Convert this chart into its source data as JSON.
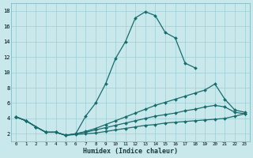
{
  "xlabel": "Humidex (Indice chaleur)",
  "background_color": "#c8e8ec",
  "grid_color": "#9ecdd4",
  "line_color": "#1a6b6b",
  "xlim": [
    -0.5,
    23.5
  ],
  "ylim": [
    1,
    19
  ],
  "xticks": [
    0,
    1,
    2,
    3,
    4,
    5,
    6,
    7,
    8,
    9,
    10,
    11,
    12,
    13,
    14,
    15,
    16,
    17,
    18,
    19,
    20,
    21,
    22,
    23
  ],
  "yticks": [
    2,
    4,
    6,
    8,
    10,
    12,
    14,
    16,
    18
  ],
  "series1_y": [
    4.2,
    3.7,
    2.9,
    2.2,
    2.2,
    1.8,
    2.0,
    4.3,
    6.0,
    8.5,
    11.8,
    14.0,
    17.1,
    17.9,
    17.4,
    15.2,
    14.5,
    11.2,
    10.6,
    null,
    null,
    null,
    null,
    null
  ],
  "series2_y": [
    4.2,
    3.7,
    2.9,
    2.2,
    2.2,
    1.8,
    2.0,
    2.3,
    2.7,
    3.2,
    3.7,
    4.2,
    4.7,
    5.2,
    5.7,
    6.1,
    6.5,
    6.9,
    7.3,
    7.7,
    8.5,
    6.5,
    5.1,
    4.8
  ],
  "series3_y": [
    4.2,
    3.7,
    2.9,
    2.2,
    2.2,
    1.8,
    2.0,
    2.2,
    2.5,
    2.8,
    3.1,
    3.4,
    3.7,
    4.0,
    4.3,
    4.5,
    4.7,
    5.0,
    5.2,
    5.5,
    5.7,
    5.5,
    4.8,
    4.6
  ],
  "series4_y": [
    4.2,
    3.7,
    2.9,
    2.2,
    2.2,
    1.8,
    1.9,
    2.0,
    2.1,
    2.3,
    2.5,
    2.7,
    2.9,
    3.1,
    3.2,
    3.4,
    3.5,
    3.6,
    3.7,
    3.8,
    3.9,
    4.0,
    4.3,
    4.6
  ],
  "figsize": [
    3.2,
    2.0
  ],
  "dpi": 100
}
